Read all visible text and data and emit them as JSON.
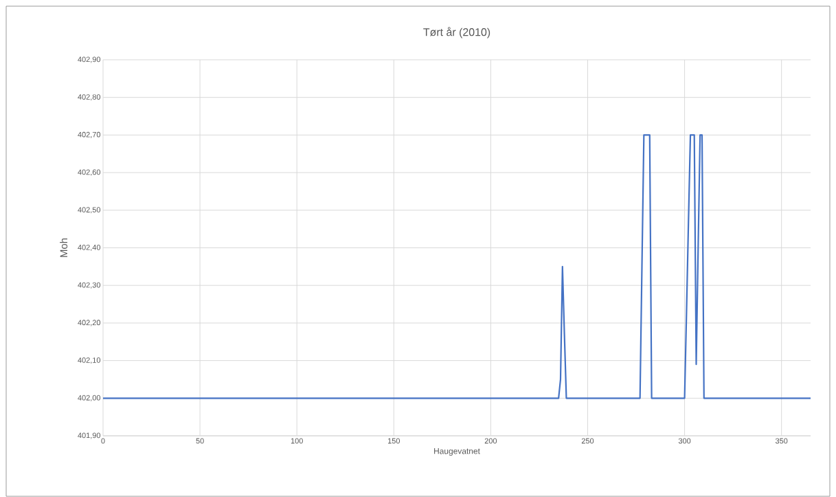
{
  "chart_data": {
    "type": "line",
    "title": "Tørt år (2010)",
    "xlabel": "Haugevatnet",
    "ylabel": "Moh",
    "x": [
      0,
      235,
      236,
      237,
      238,
      239,
      277,
      278,
      279,
      280,
      281,
      282,
      283,
      300,
      301,
      302,
      303,
      304,
      305,
      306,
      307,
      308,
      309,
      310,
      365
    ],
    "series": [
      {
        "color": "#4472c4",
        "values": [
          402.0,
          402.0,
          402.05,
          402.35,
          402.17,
          402.0,
          402.0,
          402.35,
          402.7,
          402.7,
          402.7,
          402.7,
          402.0,
          402.0,
          402.23,
          402.47,
          402.7,
          402.7,
          402.7,
          402.09,
          402.4,
          402.7,
          402.7,
          402.0,
          402.0
        ]
      }
    ],
    "xlim": [
      0,
      365
    ],
    "xticks": [
      0,
      50,
      100,
      150,
      200,
      250,
      300,
      350
    ],
    "ylim": [
      401.9,
      402.9
    ],
    "yticks": [
      {
        "value": 401.9,
        "label": "401,90"
      },
      {
        "value": 402.0,
        "label": "402,00"
      },
      {
        "value": 402.1,
        "label": "402,10"
      },
      {
        "value": 402.2,
        "label": "402,20"
      },
      {
        "value": 402.3,
        "label": "402,30"
      },
      {
        "value": 402.4,
        "label": "402,40"
      },
      {
        "value": 402.5,
        "label": "402,50"
      },
      {
        "value": 402.6,
        "label": "402,60"
      },
      {
        "value": 402.7,
        "label": "402,70"
      },
      {
        "value": 402.8,
        "label": "402,80"
      },
      {
        "value": 402.9,
        "label": "402,90"
      }
    ],
    "grid": true,
    "marker": "none",
    "line_style": "solid"
  }
}
